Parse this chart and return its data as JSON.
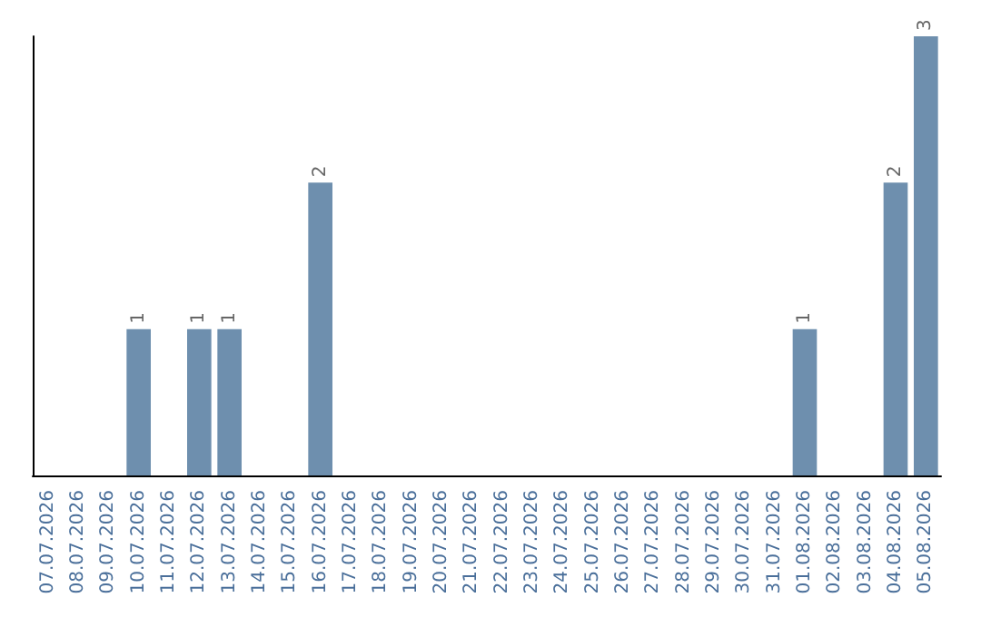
{
  "chart_data": {
    "type": "bar",
    "categories": [
      "07.07.2026",
      "08.07.2026",
      "09.07.2026",
      "10.07.2026",
      "11.07.2026",
      "12.07.2026",
      "13.07.2026",
      "14.07.2026",
      "15.07.2026",
      "16.07.2026",
      "17.07.2026",
      "18.07.2026",
      "19.07.2026",
      "20.07.2026",
      "21.07.2026",
      "22.07.2026",
      "23.07.2026",
      "24.07.2026",
      "25.07.2026",
      "26.07.2026",
      "27.07.2026",
      "28.07.2026",
      "29.07.2026",
      "30.07.2026",
      "31.07.2026",
      "01.08.2026",
      "02.08.2026",
      "03.08.2026",
      "04.08.2026",
      "05.08.2026"
    ],
    "values": [
      0,
      0,
      0,
      1,
      0,
      1,
      1,
      0,
      0,
      2,
      0,
      0,
      0,
      0,
      0,
      0,
      0,
      0,
      0,
      0,
      0,
      0,
      0,
      0,
      0,
      1,
      0,
      0,
      2,
      3
    ],
    "value_labels": [
      null,
      null,
      null,
      "1",
      null,
      "1",
      "1",
      null,
      null,
      "2",
      null,
      null,
      null,
      null,
      null,
      null,
      null,
      null,
      null,
      null,
      null,
      null,
      null,
      null,
      null,
      "1",
      null,
      null,
      "2",
      "3"
    ],
    "color": "#6e8fae",
    "grid": false
  }
}
